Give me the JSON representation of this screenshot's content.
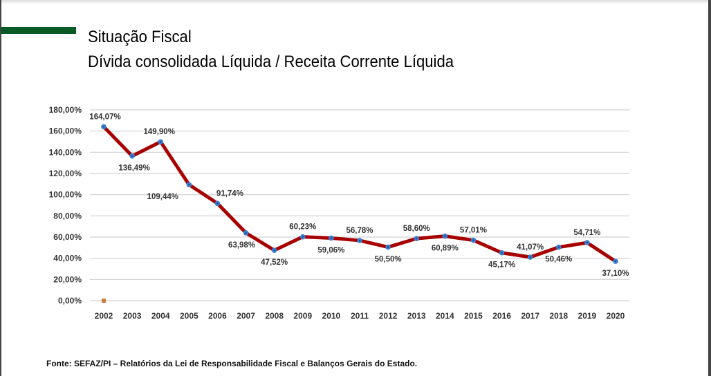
{
  "header": {
    "title": "Situação Fiscal",
    "subtitle": "Dívida consolidada Líquida / Receita Corrente Líquida"
  },
  "footer": {
    "source": "Fonte: SEFAZ/PI – Relatórios da Lei de Responsabilidade Fiscal e Balanços Gerais do Estado."
  },
  "colors": {
    "accent_bar": "#0a5a28",
    "line": "#a80000",
    "marker": "#3a7fd0",
    "stray_marker": "#d07a40",
    "grid": "#d0d0d0"
  },
  "chart_data": {
    "type": "line",
    "title": "",
    "xlabel": "",
    "ylabel": "",
    "categories": [
      "2002",
      "2003",
      "2004",
      "2005",
      "2006",
      "2007",
      "2008",
      "2009",
      "2010",
      "2011",
      "2012",
      "2013",
      "2014",
      "2015",
      "2016",
      "2017",
      "2018",
      "2019",
      "2020"
    ],
    "series": [
      {
        "values": [
          164.07,
          136.49,
          149.9,
          109.44,
          91.74,
          63.98,
          47.52,
          60.23,
          59.06,
          56.78,
          50.5,
          58.6,
          60.89,
          57.01,
          45.17,
          41.07,
          50.46,
          54.71,
          37.1
        ]
      }
    ],
    "data_labels": [
      "164,07%",
      "136,49%",
      "149,90%",
      "109,44%",
      "91,74%",
      "63,98%",
      "47,52%",
      "60,23%",
      "59,06%",
      "56,78%",
      "50,50%",
      "58,60%",
      "60,89%",
      "57,01%",
      "45,17%",
      "41,07%",
      "50,46%",
      "54,71%",
      "37,10%"
    ],
    "stray_point": {
      "x": "2002",
      "y": 0
    },
    "ylim": [
      0,
      180
    ],
    "yticks": [
      0,
      20,
      40,
      60,
      80,
      100,
      120,
      140,
      160,
      180
    ],
    "ytick_labels": [
      "0,00%",
      "20,00%",
      "40,00%",
      "60,00%",
      "80,00%",
      "100,00%",
      "120,00%",
      "140,00%",
      "160,00%",
      "180,00%"
    ],
    "grid": true,
    "legend": "none"
  }
}
